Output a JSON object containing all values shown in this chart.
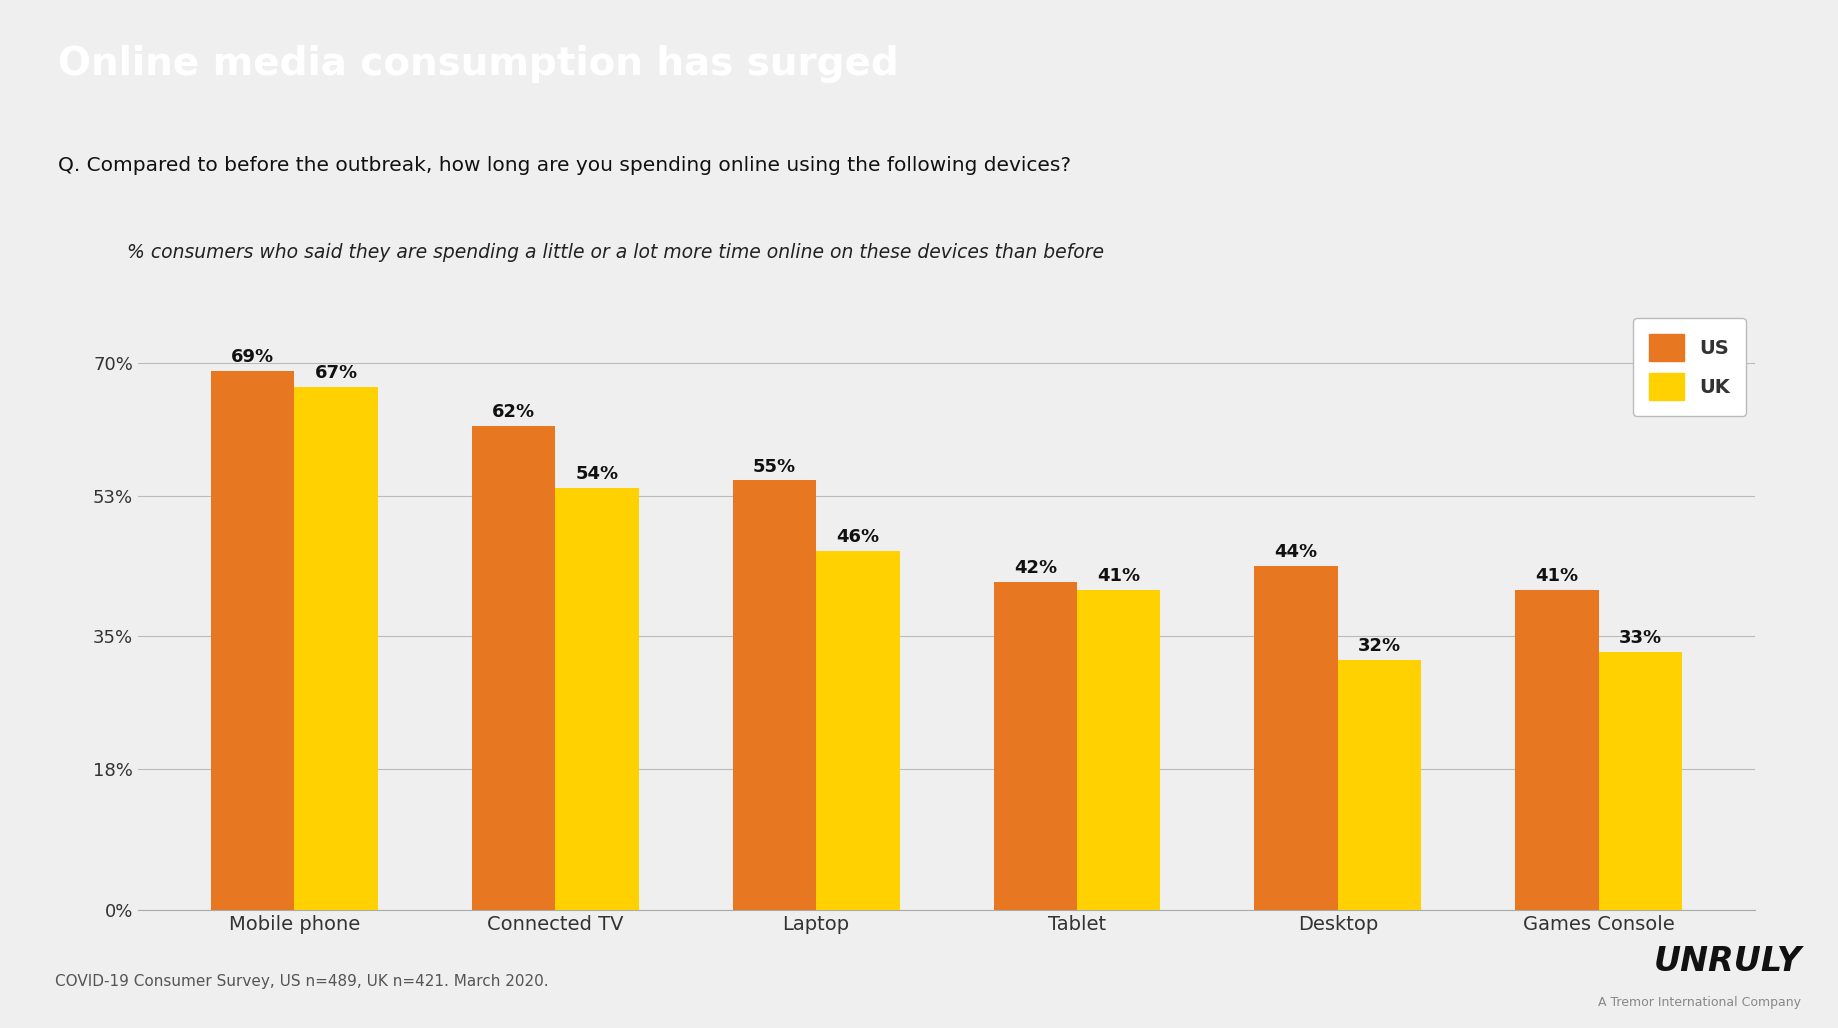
{
  "title": "Online media consumption has surged",
  "question": "Q. Compared to before the outbreak, how long are you spending online using the following devices?",
  "subtitle": "% consumers who said they are spending a little or a lot more time online on these devices than before",
  "categories": [
    "Mobile phone",
    "Connected TV",
    "Laptop",
    "Tablet",
    "Desktop",
    "Games Console"
  ],
  "us_values": [
    69,
    62,
    55,
    42,
    44,
    41
  ],
  "uk_values": [
    67,
    54,
    46,
    41,
    32,
    33
  ],
  "us_color": "#E87722",
  "uk_color": "#FFD100",
  "title_bg": "#111111",
  "title_color": "#ffffff",
  "axis_label_color": "#333333",
  "bar_label_color": "#111111",
  "footnote": "COVID-19 Consumer Survey, US n=489, UK n=421. March 2020.",
  "yticks": [
    0,
    18,
    35,
    53,
    70
  ],
  "ylim": [
    0,
    77
  ],
  "background_color": "#efefef",
  "legend_labels": [
    "US",
    "UK"
  ],
  "brand": "UNRULY",
  "brand_sub": "A Tremor International Company"
}
